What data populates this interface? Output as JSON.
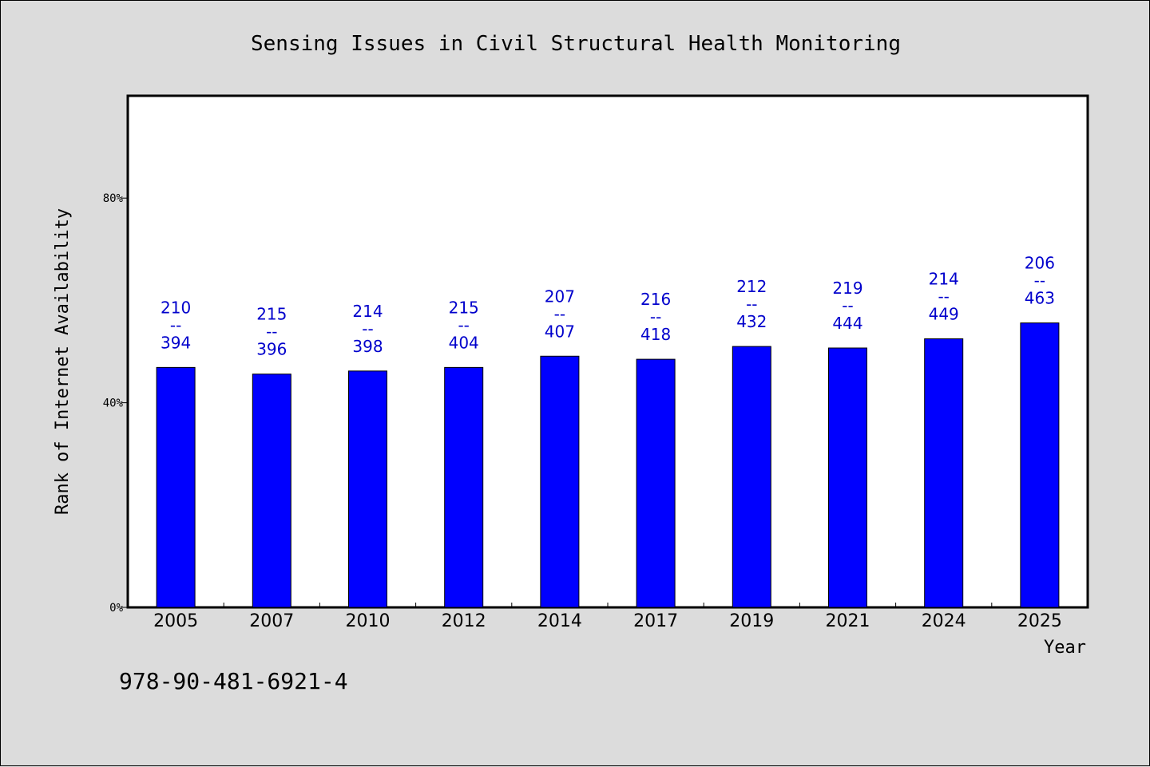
{
  "chart_data": {
    "type": "bar",
    "title": "Sensing Issues in Civil Structural Health Monitoring",
    "xlabel": "Year",
    "ylabel": "Rank of Internet Availability",
    "categories": [
      "2005",
      "2007",
      "2010",
      "2012",
      "2014",
      "2017",
      "2019",
      "2021",
      "2024",
      "2025"
    ],
    "values": [
      46.9,
      45.6,
      46.2,
      46.9,
      49.1,
      48.5,
      51.0,
      50.7,
      52.5,
      55.6
    ],
    "data_labels": [
      {
        "top": "210",
        "mid": "--",
        "bottom": "394"
      },
      {
        "top": "215",
        "mid": "--",
        "bottom": "396"
      },
      {
        "top": "214",
        "mid": "--",
        "bottom": "398"
      },
      {
        "top": "215",
        "mid": "--",
        "bottom": "404"
      },
      {
        "top": "207",
        "mid": "--",
        "bottom": "407"
      },
      {
        "top": "216",
        "mid": "--",
        "bottom": "418"
      },
      {
        "top": "212",
        "mid": "--",
        "bottom": "432"
      },
      {
        "top": "219",
        "mid": "--",
        "bottom": "444"
      },
      {
        "top": "214",
        "mid": "--",
        "bottom": "449"
      },
      {
        "top": "206",
        "mid": "--",
        "bottom": "463"
      }
    ],
    "ylim": [
      0,
      100
    ],
    "yticks": [
      0,
      40,
      80
    ],
    "ytick_labels": [
      "0%",
      "40%",
      "80%"
    ],
    "grid": false,
    "bar_color": "#0000ff",
    "label_color": "#0000cc"
  },
  "footer": {
    "isbn": "978-90-481-6921-4"
  },
  "colors": {
    "background": "#dcdcdc",
    "plot_background": "#ffffff"
  }
}
